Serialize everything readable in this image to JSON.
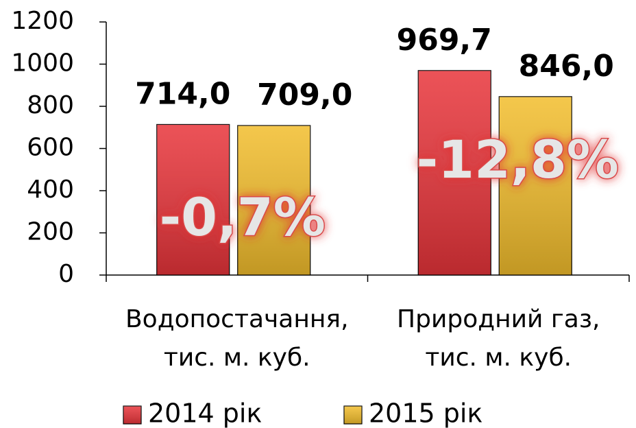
{
  "chart_data": {
    "type": "bar",
    "categories": [
      "Водопостачання,\nтис. м. куб.",
      "Природний газ,\nтис. м. куб."
    ],
    "series": [
      {
        "name": "2014 рік",
        "color": "#e8343a",
        "values": [
          714,
          969.7
        ],
        "value_labels": [
          "714,0",
          "969,7"
        ]
      },
      {
        "name": "2015 рік",
        "color": "#f2bd2c",
        "values": [
          709,
          846
        ],
        "value_labels": [
          "709,0",
          "846,0"
        ]
      }
    ],
    "annotations": [
      "-0,7%",
      "-12,8%"
    ],
    "ylim": [
      0,
      1200
    ],
    "yticks": [
      0,
      200,
      400,
      600,
      800,
      1000,
      1200
    ],
    "legend": "bottom"
  }
}
